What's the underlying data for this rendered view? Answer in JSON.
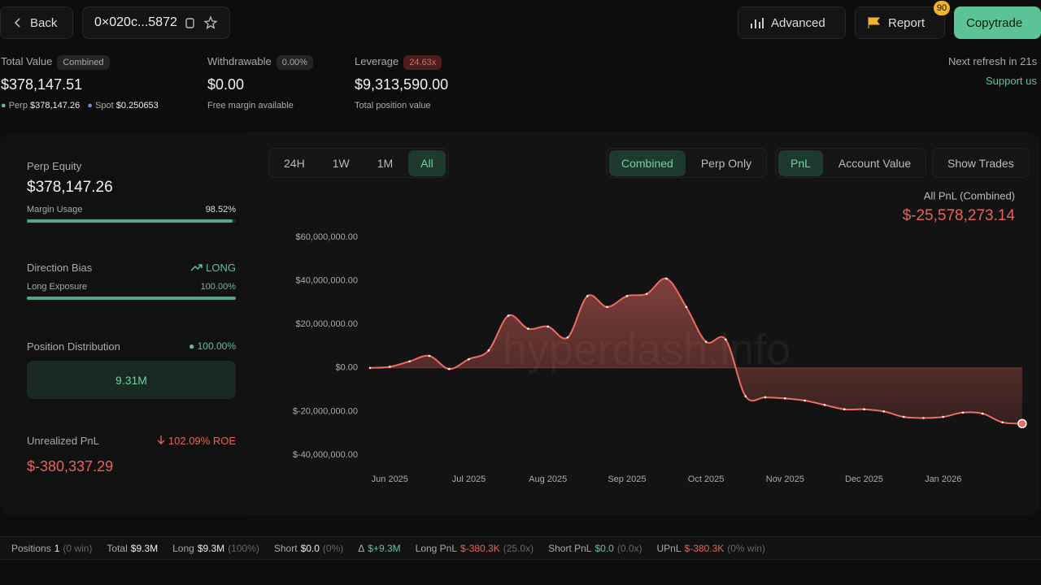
{
  "header": {
    "back": "Back",
    "address": "0×020c...5872",
    "advanced": "Advanced",
    "report": "Report",
    "report_badge": "90",
    "copytrade": "Copytrade"
  },
  "summary": {
    "total_value_label": "Total Value",
    "total_value_tag": "Combined",
    "total_value": "$378,147.51",
    "perp_label": "Perp",
    "perp_value": "$378,147.26",
    "spot_label": "Spot",
    "spot_value": "$0.250653",
    "withdrawable_label": "Withdrawable",
    "withdrawable_tag": "0.00%",
    "withdrawable": "$0.00",
    "withdrawable_note": "Free margin available",
    "leverage_label": "Leverage",
    "leverage_tag": "24.63x",
    "leverage": "$9,313,590.00",
    "leverage_note": "Total position value",
    "refresh": "Next refresh in 21s",
    "support": "Support us"
  },
  "panel": {
    "perp_equity_label": "Perp Equity",
    "perp_equity": "$378,147.26",
    "margin_usage_label": "Margin Usage",
    "margin_usage": "98.52%",
    "direction_bias_label": "Direction Bias",
    "direction": "LONG",
    "long_exposure_label": "Long Exposure",
    "long_exposure": "100.00%",
    "position_distribution_label": "Position Distribution",
    "position_distribution": "100.00%",
    "distribution_bar": "9.31M",
    "unrealized_pnl_label": "Unrealized PnL",
    "roe": "102.09% ROE",
    "unrealized_pnl": "$-380,337.29"
  },
  "controls": {
    "ranges": [
      "24H",
      "1W",
      "1M",
      "All"
    ],
    "modes": [
      "Combined",
      "Perp Only"
    ],
    "metrics": [
      "PnL",
      "Account Value"
    ],
    "show_trades": "Show Trades"
  },
  "chart_data": {
    "type": "line",
    "title": "All PnL (Combined)",
    "total": "$-25,578,273.14",
    "watermark": "hyperdash.info",
    "color": "#ef6b61",
    "categories": [
      null,
      "Jun 2025",
      null,
      null,
      null,
      "Jul 2025",
      null,
      null,
      null,
      "Aug 2025",
      null,
      null,
      null,
      "Sep 2025",
      null,
      null,
      null,
      "Oct 2025",
      null,
      null,
      null,
      "Nov 2025",
      null,
      null,
      null,
      "Dec 2025",
      null,
      null,
      null,
      "Jan 2026",
      null,
      null,
      null,
      null
    ],
    "values": [
      0,
      500000,
      3000000,
      5500000,
      -500000,
      4000000,
      8000000,
      24000000,
      18000000,
      19000000,
      14000000,
      33000000,
      28000000,
      33000000,
      34000000,
      41000000,
      28000000,
      12000000,
      13000000,
      -13000000,
      -13500000,
      -14000000,
      -15000000,
      -17000000,
      -19000000,
      -19000000,
      -20000000,
      -22500000,
      -23000000,
      -22500000,
      -20500000,
      -21000000,
      -25000000,
      -25578273.14
    ],
    "ylim": [
      -40000000,
      60000000
    ],
    "yticks": [
      {
        "value": 60000000,
        "label": "$60,000,000.00"
      },
      {
        "value": 40000000,
        "label": "$40,000,000.00"
      },
      {
        "value": 20000000,
        "label": "$20,000,000.00"
      },
      {
        "value": 0,
        "label": "$0.00"
      },
      {
        "value": -20000000,
        "label": "$-20,000,000.00"
      },
      {
        "value": -40000000,
        "label": "$-40,000,000.00"
      }
    ]
  },
  "footer": [
    {
      "label": "Positions",
      "value": "1",
      "note": "(0 win)"
    },
    {
      "label": "Total",
      "value": "$9.3M"
    },
    {
      "label": "Long",
      "value": "$9.3M",
      "note": "(100%)"
    },
    {
      "label": "Short",
      "value": "$0.0",
      "note": "(0%)"
    },
    {
      "label": "Δ",
      "value": "$+9.3M"
    },
    {
      "label": "Long PnL",
      "value": "$-380.3K",
      "note": "(25.0x)"
    },
    {
      "label": "Short PnL",
      "value": "$0.0",
      "note": "(0.0x)"
    },
    {
      "label": "UPnL",
      "value": "$-380.3K",
      "note": "(0% win)"
    }
  ]
}
